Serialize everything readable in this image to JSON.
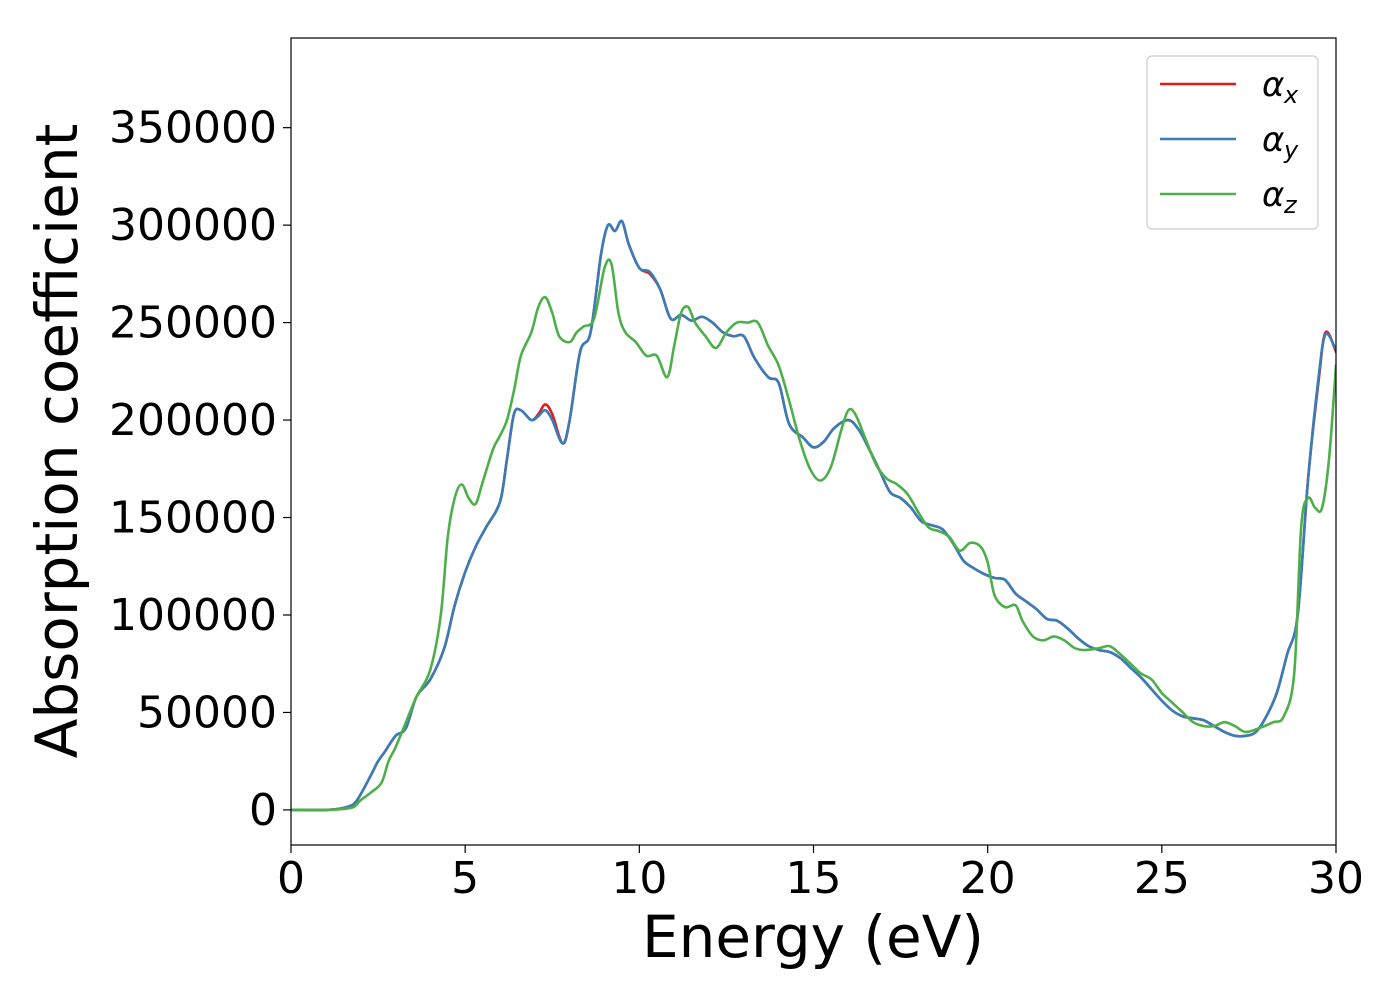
{
  "chart_data": {
    "type": "line",
    "title": "",
    "xlabel": "Energy (eV)",
    "ylabel": "Absorption coefficient",
    "xlim": [
      0,
      30
    ],
    "ylim": [
      -18000,
      396000
    ],
    "xticks": [
      0,
      5,
      10,
      15,
      20,
      25,
      30
    ],
    "xtick_labels": [
      "0",
      "5",
      "10",
      "15",
      "20",
      "25",
      "30"
    ],
    "yticks": [
      0,
      50000,
      100000,
      150000,
      200000,
      250000,
      300000,
      350000
    ],
    "ytick_labels": [
      "0",
      "50000",
      "100000",
      "150000",
      "200000",
      "250000",
      "300000",
      "350000"
    ],
    "grid": false,
    "legend_position": "top-right",
    "series": [
      {
        "name": "α_x",
        "legend_base": "α",
        "legend_sub": "x",
        "color": "#e41a1c",
        "x": [
          0,
          1,
          1.5,
          1.8,
          2.0,
          2.3,
          2.5,
          2.7,
          3.0,
          3.3,
          3.6,
          4.0,
          4.4,
          4.7,
          5.0,
          5.3,
          5.6,
          6.0,
          6.2,
          6.4,
          6.6,
          6.9,
          7.1,
          7.3,
          7.5,
          7.8,
          8.0,
          8.3,
          8.6,
          8.9,
          9.1,
          9.3,
          9.5,
          9.7,
          10.0,
          10.3,
          10.6,
          10.9,
          11.2,
          11.5,
          11.8,
          12.1,
          12.4,
          12.7,
          13.0,
          13.3,
          13.7,
          14.0,
          14.3,
          14.7,
          15.0,
          15.3,
          15.6,
          16.0,
          16.3,
          16.6,
          16.9,
          17.2,
          17.5,
          17.8,
          18.1,
          18.4,
          18.7,
          19.0,
          19.3,
          19.6,
          19.9,
          20.2,
          20.5,
          20.8,
          21.1,
          21.4,
          21.7,
          22.0,
          22.3,
          22.6,
          22.9,
          23.2,
          23.5,
          23.8,
          24.1,
          24.4,
          24.7,
          25.0,
          25.3,
          25.6,
          25.9,
          26.2,
          26.5,
          26.8,
          27.1,
          27.4,
          27.7,
          28.0,
          28.3,
          28.6,
          28.9,
          29.2,
          29.5,
          29.7,
          30.0
        ],
        "y": [
          0,
          0,
          1000,
          3000,
          8000,
          18000,
          25000,
          30000,
          38000,
          42000,
          58000,
          67000,
          83000,
          105000,
          122000,
          135000,
          145000,
          158000,
          180000,
          203000,
          205000,
          200000,
          203000,
          208000,
          203000,
          188000,
          200000,
          235000,
          245000,
          285000,
          300000,
          297000,
          302000,
          290000,
          278000,
          275000,
          267000,
          252000,
          254000,
          251000,
          253000,
          250000,
          245000,
          243000,
          243000,
          232000,
          222000,
          219000,
          198000,
          191000,
          186000,
          189000,
          196000,
          200000,
          195000,
          185000,
          174000,
          163000,
          160000,
          155000,
          148000,
          146000,
          144000,
          137000,
          128000,
          124000,
          121000,
          119000,
          118000,
          111000,
          107000,
          103000,
          98000,
          97000,
          93000,
          88000,
          84000,
          82000,
          81000,
          78000,
          73000,
          68000,
          62000,
          56000,
          51000,
          48000,
          47000,
          46000,
          43000,
          40000,
          38000,
          38000,
          40000,
          48000,
          60000,
          80000,
          100000,
          170000,
          220000,
          245000,
          235000
        ]
      },
      {
        "name": "α_y",
        "legend_base": "α",
        "legend_sub": "y",
        "color": "#377eb8",
        "x": [
          0,
          1,
          1.5,
          1.8,
          2.0,
          2.3,
          2.5,
          2.7,
          3.0,
          3.3,
          3.6,
          4.0,
          4.4,
          4.7,
          5.0,
          5.3,
          5.6,
          6.0,
          6.2,
          6.4,
          6.6,
          6.9,
          7.1,
          7.3,
          7.5,
          7.8,
          8.0,
          8.3,
          8.6,
          8.9,
          9.1,
          9.3,
          9.5,
          9.7,
          10.0,
          10.3,
          10.6,
          10.9,
          11.2,
          11.5,
          11.8,
          12.1,
          12.4,
          12.7,
          13.0,
          13.3,
          13.7,
          14.0,
          14.3,
          14.7,
          15.0,
          15.3,
          15.6,
          16.0,
          16.3,
          16.6,
          16.9,
          17.2,
          17.5,
          17.8,
          18.1,
          18.4,
          18.7,
          19.0,
          19.3,
          19.6,
          19.9,
          20.2,
          20.5,
          20.8,
          21.1,
          21.4,
          21.7,
          22.0,
          22.3,
          22.6,
          22.9,
          23.2,
          23.5,
          23.8,
          24.1,
          24.4,
          24.7,
          25.0,
          25.3,
          25.6,
          25.9,
          26.2,
          26.5,
          26.8,
          27.1,
          27.4,
          27.7,
          28.0,
          28.3,
          28.6,
          28.9,
          29.2,
          29.5,
          29.7,
          30.0
        ],
        "y": [
          0,
          0,
          1000,
          3000,
          8000,
          18000,
          25000,
          30000,
          38000,
          42000,
          58000,
          67000,
          83000,
          105000,
          122000,
          135000,
          145000,
          158000,
          180000,
          203000,
          205000,
          200000,
          202000,
          205000,
          200000,
          188000,
          200000,
          235000,
          245000,
          285000,
          300000,
          297000,
          302000,
          290000,
          278000,
          276000,
          267000,
          252000,
          254000,
          251000,
          253000,
          250000,
          245000,
          243000,
          243000,
          232000,
          222000,
          219000,
          198000,
          191000,
          186000,
          189000,
          196000,
          200000,
          195000,
          185000,
          174000,
          163000,
          160000,
          155000,
          148000,
          146000,
          144000,
          137000,
          128000,
          124000,
          121000,
          119000,
          118000,
          111000,
          107000,
          103000,
          98000,
          97000,
          93000,
          88000,
          84000,
          82000,
          81000,
          78000,
          73000,
          68000,
          62000,
          56000,
          51000,
          48000,
          47000,
          46000,
          43000,
          40000,
          38000,
          38000,
          40000,
          48000,
          60000,
          80000,
          100000,
          170000,
          222000,
          244000,
          236000
        ]
      },
      {
        "name": "α_z",
        "legend_base": "α",
        "legend_sub": "z",
        "color": "#4daf4a",
        "x": [
          0,
          1,
          1.5,
          1.8,
          2.0,
          2.3,
          2.6,
          2.8,
          3.0,
          3.3,
          3.6,
          4.0,
          4.3,
          4.5,
          4.7,
          4.9,
          5.1,
          5.3,
          5.5,
          5.8,
          6.0,
          6.2,
          6.4,
          6.6,
          6.9,
          7.1,
          7.3,
          7.5,
          7.7,
          8.0,
          8.2,
          8.4,
          8.7,
          9.0,
          9.2,
          9.4,
          9.6,
          9.9,
          10.2,
          10.5,
          10.8,
          11.0,
          11.2,
          11.4,
          11.6,
          11.9,
          12.2,
          12.5,
          12.8,
          13.1,
          13.4,
          13.7,
          14.0,
          14.3,
          14.6,
          14.9,
          15.2,
          15.5,
          15.8,
          16.0,
          16.2,
          16.5,
          16.8,
          17.1,
          17.4,
          17.7,
          18.0,
          18.3,
          18.6,
          18.9,
          19.2,
          19.5,
          19.8,
          20.0,
          20.2,
          20.5,
          20.8,
          21.0,
          21.3,
          21.6,
          21.9,
          22.2,
          22.5,
          22.8,
          23.2,
          23.5,
          23.8,
          24.1,
          24.4,
          24.7,
          25.0,
          25.3,
          25.6,
          25.9,
          26.2,
          26.5,
          26.8,
          27.1,
          27.4,
          27.8,
          28.2,
          28.5,
          28.8,
          29.0,
          29.2,
          29.4,
          29.6,
          29.8,
          30.0
        ],
        "y": [
          0,
          0,
          500,
          1500,
          5000,
          9000,
          14000,
          25000,
          32000,
          45000,
          58000,
          72000,
          100000,
          140000,
          160000,
          167000,
          160000,
          157000,
          168000,
          185000,
          192000,
          200000,
          215000,
          233000,
          245000,
          258000,
          263000,
          255000,
          243000,
          240000,
          245000,
          248000,
          252000,
          278000,
          280000,
          255000,
          245000,
          240000,
          233000,
          233000,
          222000,
          238000,
          255000,
          258000,
          250000,
          243000,
          237000,
          245000,
          250000,
          250000,
          250000,
          238000,
          228000,
          210000,
          190000,
          175000,
          169000,
          176000,
          195000,
          205000,
          203000,
          190000,
          177000,
          170000,
          167000,
          162000,
          153000,
          145000,
          143000,
          140000,
          133000,
          137000,
          135000,
          127000,
          110000,
          104000,
          105000,
          97000,
          89000,
          87000,
          89000,
          87000,
          83000,
          82000,
          83000,
          84000,
          80000,
          75000,
          70000,
          67000,
          60000,
          55000,
          50000,
          45000,
          43000,
          43000,
          45000,
          43000,
          40000,
          42000,
          45000,
          48000,
          70000,
          145000,
          160000,
          155000,
          155000,
          180000,
          228000
        ]
      }
    ]
  }
}
